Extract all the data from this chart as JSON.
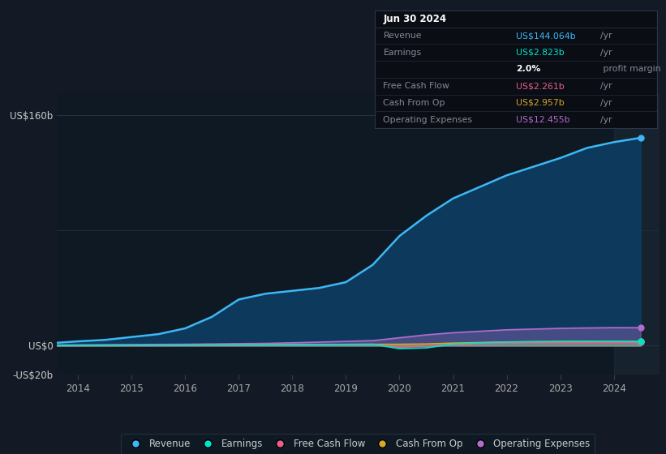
{
  "background_color": "#131a25",
  "chart_bg_color": "#0f1923",
  "ylim": [
    -20,
    175
  ],
  "xlim": [
    2013.6,
    2024.85
  ],
  "xtick_years": [
    2014,
    2015,
    2016,
    2017,
    2018,
    2019,
    2020,
    2021,
    2022,
    2023,
    2024
  ],
  "revenue_color": "#3db8f5",
  "revenue_fill": "#0d3a5c",
  "earnings_color": "#00e5c8",
  "fcf_color": "#e8608a",
  "cashop_color": "#d4a82a",
  "opex_color": "#b06cce",
  "revenue_x": [
    2013.6,
    2014.0,
    2014.5,
    2015.0,
    2015.5,
    2016.0,
    2016.5,
    2017.0,
    2017.5,
    2018.0,
    2018.5,
    2019.0,
    2019.5,
    2020.0,
    2020.5,
    2021.0,
    2021.5,
    2022.0,
    2022.5,
    2023.0,
    2023.5,
    2024.0,
    2024.5
  ],
  "revenue_y": [
    2,
    3,
    4,
    6,
    8,
    12,
    20,
    32,
    36,
    38,
    40,
    44,
    56,
    76,
    90,
    102,
    110,
    118,
    124,
    130,
    137,
    141,
    144
  ],
  "earnings_x": [
    2013.6,
    2014.0,
    2014.5,
    2015.0,
    2015.5,
    2016.0,
    2016.5,
    2017.0,
    2017.5,
    2018.0,
    2018.5,
    2019.0,
    2019.5,
    2020.0,
    2020.5,
    2021.0,
    2021.5,
    2022.0,
    2022.5,
    2023.0,
    2023.5,
    2024.0,
    2024.5
  ],
  "earnings_y": [
    0.1,
    0.15,
    0.2,
    0.3,
    0.3,
    0.3,
    0.4,
    0.5,
    0.6,
    0.7,
    0.7,
    0.9,
    1.0,
    -2.0,
    -1.5,
    1.2,
    2.0,
    2.5,
    2.7,
    2.8,
    2.9,
    2.9,
    2.823
  ],
  "fcf_x": [
    2013.6,
    2014.0,
    2014.5,
    2015.0,
    2015.5,
    2016.0,
    2016.5,
    2017.0,
    2017.5,
    2018.0,
    2018.5,
    2019.0,
    2019.5,
    2020.0,
    2020.5,
    2021.0,
    2021.5,
    2022.0,
    2022.5,
    2023.0,
    2023.5,
    2024.0,
    2024.5
  ],
  "fcf_y": [
    0.05,
    0.1,
    0.15,
    0.2,
    0.25,
    0.3,
    0.35,
    0.5,
    0.5,
    0.6,
    0.6,
    0.8,
    0.9,
    -1.0,
    -0.3,
    0.8,
    1.4,
    1.8,
    2.0,
    2.1,
    2.2,
    2.3,
    2.261
  ],
  "cashop_x": [
    2013.6,
    2014.0,
    2014.5,
    2015.0,
    2015.5,
    2016.0,
    2016.5,
    2017.0,
    2017.5,
    2018.0,
    2018.5,
    2019.0,
    2019.5,
    2020.0,
    2020.5,
    2021.0,
    2021.5,
    2022.0,
    2022.5,
    2023.0,
    2023.5,
    2024.0,
    2024.5
  ],
  "cashop_y": [
    0.1,
    0.15,
    0.2,
    0.25,
    0.3,
    0.35,
    0.45,
    0.55,
    0.6,
    0.7,
    0.7,
    0.9,
    1.0,
    1.0,
    1.2,
    1.8,
    2.2,
    2.6,
    2.8,
    3.0,
    3.1,
    3.0,
    2.957
  ],
  "opex_x": [
    2013.6,
    2014.0,
    2014.5,
    2015.0,
    2015.5,
    2016.0,
    2016.5,
    2017.0,
    2017.5,
    2018.0,
    2018.5,
    2019.0,
    2019.5,
    2020.0,
    2020.5,
    2021.0,
    2021.5,
    2022.0,
    2022.5,
    2023.0,
    2023.5,
    2024.0,
    2024.5
  ],
  "opex_y": [
    0.5,
    0.6,
    0.7,
    0.8,
    0.9,
    1.0,
    1.2,
    1.4,
    1.6,
    2.0,
    2.5,
    3.0,
    3.5,
    5.5,
    7.5,
    9.0,
    10.0,
    11.0,
    11.5,
    12.0,
    12.3,
    12.5,
    12.455
  ],
  "info_box": {
    "date": "Jun 30 2024",
    "rows": [
      {
        "label": "Revenue",
        "value": "US$144.064b",
        "unit": "/yr",
        "value_color": "#3db8f5"
      },
      {
        "label": "Earnings",
        "value": "US$2.823b",
        "unit": "/yr",
        "value_color": "#00e5c8"
      },
      {
        "label": "",
        "value": "2.0%",
        "unit": " profit margin",
        "value_color": "#ffffff",
        "bold_value": true
      },
      {
        "label": "Free Cash Flow",
        "value": "US$2.261b",
        "unit": "/yr",
        "value_color": "#e8608a"
      },
      {
        "label": "Cash From Op",
        "value": "US$2.957b",
        "unit": "/yr",
        "value_color": "#d4a82a"
      },
      {
        "label": "Operating Expenses",
        "value": "US$12.455b",
        "unit": "/yr",
        "value_color": "#b06cce"
      }
    ]
  },
  "legend_items": [
    {
      "label": "Revenue",
      "color": "#3db8f5"
    },
    {
      "label": "Earnings",
      "color": "#00e5c8"
    },
    {
      "label": "Free Cash Flow",
      "color": "#e8608a"
    },
    {
      "label": "Cash From Op",
      "color": "#d4a82a"
    },
    {
      "label": "Operating Expenses",
      "color": "#b06cce"
    }
  ]
}
